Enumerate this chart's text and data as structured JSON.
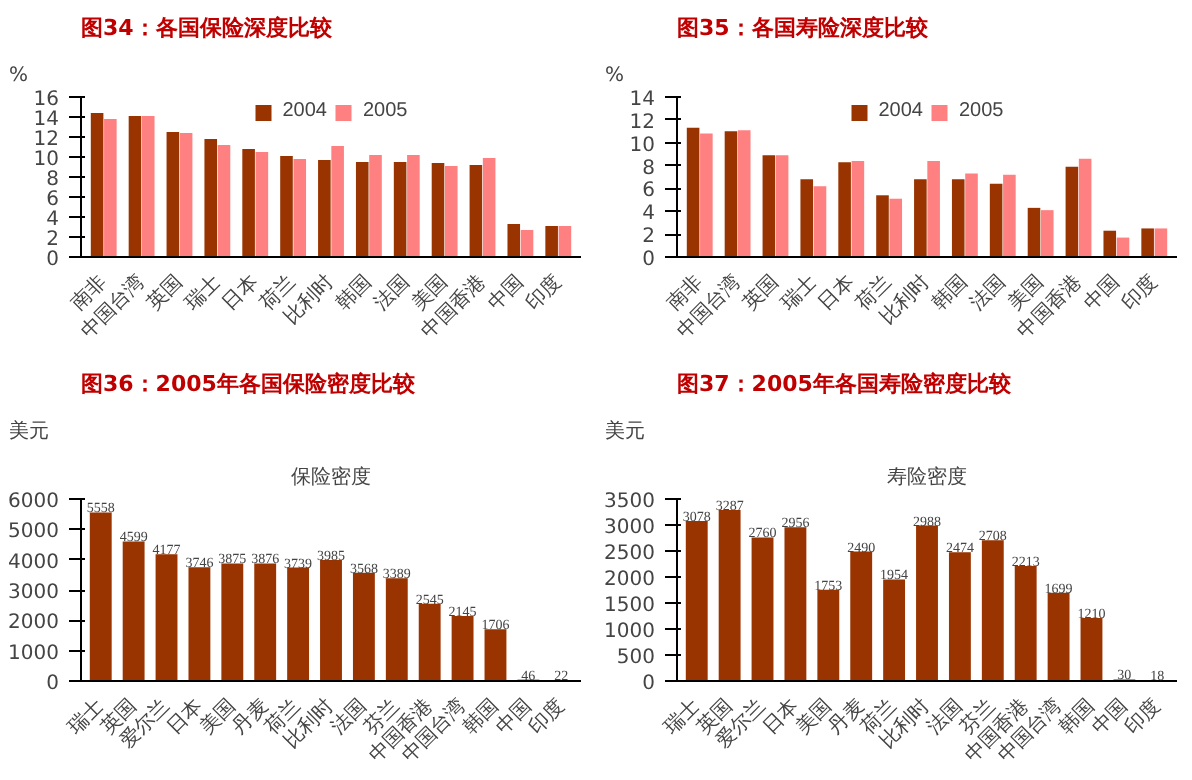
{
  "chart_data": [
    {
      "type": "bar",
      "title": "图34：各国保险深度比较",
      "ylabel": "%",
      "categories": [
        "南非",
        "中国台湾",
        "英国",
        "瑞士",
        "日本",
        "荷兰",
        "比利时",
        "韩国",
        "法国",
        "美国",
        "中国香港",
        "中国",
        "印度"
      ],
      "series": [
        {
          "name": "2004",
          "color": "#993300",
          "values": [
            14.4,
            14.1,
            12.5,
            11.8,
            10.8,
            10.1,
            9.7,
            9.5,
            9.5,
            9.4,
            9.2,
            3.3,
            3.1
          ]
        },
        {
          "name": "2005",
          "color": "#ff8080",
          "values": [
            13.8,
            14.1,
            12.4,
            11.2,
            10.5,
            9.8,
            11.1,
            10.2,
            10.2,
            9.1,
            9.9,
            2.7,
            3.1
          ]
        }
      ],
      "ylim": [
        0,
        16
      ],
      "yticks": [
        0,
        2,
        4,
        6,
        8,
        10,
        12,
        14,
        16
      ],
      "legend": "top",
      "grid": false
    },
    {
      "type": "bar",
      "title": "图35：各国寿险深度比较",
      "ylabel": "%",
      "categories": [
        "南非",
        "中国台湾",
        "英国",
        "瑞士",
        "日本",
        "荷兰",
        "比利时",
        "韩国",
        "法国",
        "美国",
        "中国香港",
        "中国",
        "印度"
      ],
      "series": [
        {
          "name": "2004",
          "color": "#993300",
          "values": [
            11.3,
            11.0,
            8.9,
            6.8,
            8.3,
            5.4,
            6.8,
            6.8,
            6.4,
            4.3,
            7.9,
            2.3,
            2.5
          ]
        },
        {
          "name": "2005",
          "color": "#ff8080",
          "values": [
            10.8,
            11.1,
            8.9,
            6.2,
            8.4,
            5.1,
            8.4,
            7.3,
            7.2,
            4.1,
            8.6,
            1.7,
            2.5
          ]
        }
      ],
      "ylim": [
        0,
        14
      ],
      "yticks": [
        0,
        2,
        4,
        6,
        8,
        10,
        12,
        14
      ],
      "legend": "top",
      "grid": false
    },
    {
      "type": "bar",
      "title": "图36：2005年各国保险密度比较",
      "subtitle": "保险密度",
      "ylabel": "美元",
      "categories": [
        "瑞士",
        "英国",
        "爱尔兰",
        "日本",
        "美国",
        "丹麦",
        "荷兰",
        "比利时",
        "法国",
        "芬兰",
        "中国香港",
        "中国台湾",
        "韩国",
        "中国",
        "印度"
      ],
      "series": [
        {
          "color": "#993300",
          "values": [
            5558,
            4599,
            4177,
            3746,
            3875,
            3876,
            3739,
            3985,
            3568,
            3389,
            2545,
            2145,
            1706,
            46,
            22
          ]
        }
      ],
      "ylim": [
        0,
        6000
      ],
      "yticks": [
        0,
        1000,
        2000,
        3000,
        4000,
        5000,
        6000
      ],
      "data_labels": true,
      "grid": false
    },
    {
      "type": "bar",
      "title": "图37：2005年各国寿险密度比较",
      "subtitle": "寿险密度",
      "ylabel": "美元",
      "categories": [
        "瑞士",
        "英国",
        "爱尔兰",
        "日本",
        "美国",
        "丹麦",
        "荷兰",
        "比利时",
        "法国",
        "芬兰",
        "中国香港",
        "中国台湾",
        "韩国",
        "中国",
        "印度"
      ],
      "series": [
        {
          "color": "#993300",
          "values": [
            3078,
            3287,
            2760,
            2956,
            1753,
            2490,
            1954,
            2988,
            2474,
            2708,
            2213,
            1699,
            1210,
            30,
            18
          ]
        }
      ],
      "ylim": [
        0,
        3500
      ],
      "yticks": [
        0,
        500,
        1000,
        1500,
        2000,
        2500,
        3000,
        3500
      ],
      "data_labels": true,
      "grid": false
    }
  ]
}
